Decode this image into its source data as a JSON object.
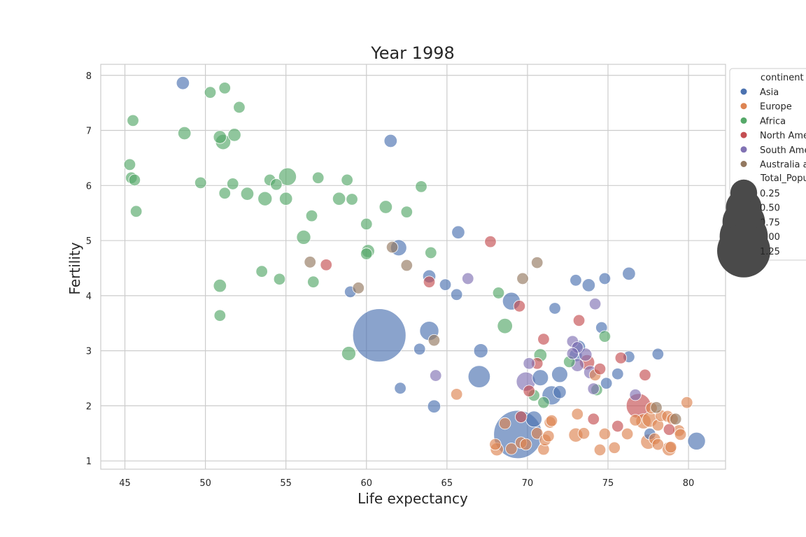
{
  "chart_data": {
    "type": "scatter",
    "title": "Year 1998",
    "xlabel": "Life expectancy",
    "ylabel": "Fertility",
    "xlim": [
      43.5,
      82.3
    ],
    "ylim": [
      0.85,
      8.2
    ],
    "xticks": [
      45,
      50,
      55,
      60,
      65,
      70,
      75,
      80
    ],
    "yticks": [
      1,
      2,
      3,
      4,
      5,
      6,
      7,
      8
    ],
    "grid": true,
    "legend_position": "right",
    "legend": {
      "hue_title": "continent",
      "hue_entries": [
        {
          "label": "Asia",
          "color": "#4c72b0"
        },
        {
          "label": "Europe",
          "color": "#dd8452"
        },
        {
          "label": "Africa",
          "color": "#55a868"
        },
        {
          "label": "North America",
          "color": "#c44e52"
        },
        {
          "label": "South America",
          "color": "#8172b3"
        },
        {
          "label": "Australia and Oceania",
          "color": "#937860"
        }
      ],
      "size_title": "Total_Population",
      "size_entries": [
        {
          "label": "0.25",
          "value": 0.25
        },
        {
          "label": "0.50",
          "value": 0.5
        },
        {
          "label": "0.75",
          "value": 0.75
        },
        {
          "label": "1.00",
          "value": 1.0
        },
        {
          "label": "1.25",
          "value": 1.25
        }
      ]
    },
    "series": [
      {
        "name": "Asia",
        "color": "#4c72b0",
        "points": [
          [
            48.6,
            7.86,
            0.03
          ],
          [
            61.5,
            6.81,
            0.03
          ],
          [
            62.0,
            4.87,
            0.06
          ],
          [
            65.7,
            5.15,
            0.03
          ],
          [
            63.9,
            4.35,
            0.03
          ],
          [
            59.0,
            4.07,
            0.02
          ],
          [
            64.9,
            4.2,
            0.02
          ],
          [
            65.6,
            4.02,
            0.02
          ],
          [
            69.0,
            3.9,
            0.08
          ],
          [
            71.7,
            3.77,
            0.02
          ],
          [
            74.8,
            4.31,
            0.02
          ],
          [
            73.0,
            4.28,
            0.02
          ],
          [
            73.8,
            4.19,
            0.03
          ],
          [
            76.3,
            4.4,
            0.03
          ],
          [
            60.8,
            3.28,
            1.25
          ],
          [
            63.9,
            3.36,
            0.1
          ],
          [
            63.3,
            3.03,
            0.02
          ],
          [
            67.1,
            3.0,
            0.04
          ],
          [
            67.0,
            2.53,
            0.15
          ],
          [
            70.8,
            2.51,
            0.06
          ],
          [
            72.0,
            2.57,
            0.06
          ],
          [
            73.0,
            2.92,
            0.03
          ],
          [
            73.2,
            3.07,
            0.03
          ],
          [
            74.6,
            3.42,
            0.02
          ],
          [
            74.9,
            2.41,
            0.02
          ],
          [
            75.6,
            2.58,
            0.02
          ],
          [
            76.3,
            2.89,
            0.02
          ],
          [
            78.1,
            2.94,
            0.02
          ],
          [
            62.1,
            2.32,
            0.02
          ],
          [
            64.2,
            1.99,
            0.03
          ],
          [
            71.5,
            2.19,
            0.1
          ],
          [
            72.0,
            2.25,
            0.03
          ],
          [
            69.4,
            1.48,
            1.0
          ],
          [
            70.4,
            1.76,
            0.06
          ],
          [
            77.6,
            1.49,
            0.02
          ],
          [
            80.5,
            1.36,
            0.08
          ]
        ]
      },
      {
        "name": "Europe",
        "color": "#dd8452",
        "points": [
          [
            65.6,
            2.21,
            0.02
          ],
          [
            68.0,
            1.3,
            0.02
          ],
          [
            68.1,
            1.21,
            0.03
          ],
          [
            68.6,
            1.68,
            0.02
          ],
          [
            69.0,
            1.22,
            0.02
          ],
          [
            69.6,
            1.33,
            0.02
          ],
          [
            69.9,
            1.3,
            0.02
          ],
          [
            70.6,
            1.5,
            0.02
          ],
          [
            71.0,
            1.21,
            0.02
          ],
          [
            71.1,
            1.38,
            0.02
          ],
          [
            71.3,
            1.45,
            0.02
          ],
          [
            71.4,
            1.7,
            0.02
          ],
          [
            71.5,
            1.73,
            0.02
          ],
          [
            73.0,
            1.47,
            0.04
          ],
          [
            73.5,
            1.5,
            0.02
          ],
          [
            73.1,
            1.85,
            0.02
          ],
          [
            74.2,
            2.56,
            0.02
          ],
          [
            74.5,
            1.2,
            0.02
          ],
          [
            74.8,
            1.49,
            0.02
          ],
          [
            75.4,
            1.24,
            0.02
          ],
          [
            76.2,
            1.49,
            0.02
          ],
          [
            76.7,
            1.74,
            0.02
          ],
          [
            77.2,
            1.72,
            0.05
          ],
          [
            77.5,
            1.35,
            0.05
          ],
          [
            77.6,
            1.75,
            0.05
          ],
          [
            77.7,
            1.96,
            0.02
          ],
          [
            77.9,
            1.4,
            0.02
          ],
          [
            78.1,
            1.65,
            0.02
          ],
          [
            78.1,
            1.3,
            0.02
          ],
          [
            78.3,
            1.82,
            0.02
          ],
          [
            78.7,
            1.81,
            0.02
          ],
          [
            78.8,
            1.22,
            0.04
          ],
          [
            78.9,
            1.25,
            0.02
          ],
          [
            79.0,
            1.76,
            0.02
          ],
          [
            79.4,
            1.55,
            0.02
          ],
          [
            79.5,
            1.48,
            0.02
          ],
          [
            79.9,
            2.06,
            0.02
          ]
        ]
      },
      {
        "name": "Africa",
        "color": "#55a868",
        "points": [
          [
            45.5,
            7.18,
            0.02
          ],
          [
            48.7,
            6.95,
            0.03
          ],
          [
            50.3,
            7.69,
            0.02
          ],
          [
            51.2,
            7.77,
            0.02
          ],
          [
            52.1,
            7.42,
            0.02
          ],
          [
            50.9,
            6.88,
            0.03
          ],
          [
            51.1,
            6.79,
            0.05
          ],
          [
            51.8,
            6.92,
            0.03
          ],
          [
            45.3,
            6.38,
            0.02
          ],
          [
            45.4,
            6.14,
            0.02
          ],
          [
            45.6,
            6.1,
            0.02
          ],
          [
            45.7,
            5.53,
            0.02
          ],
          [
            49.7,
            6.05,
            0.02
          ],
          [
            51.2,
            5.86,
            0.02
          ],
          [
            51.7,
            6.03,
            0.02
          ],
          [
            52.6,
            5.85,
            0.03
          ],
          [
            53.7,
            5.76,
            0.04
          ],
          [
            54.0,
            6.1,
            0.02
          ],
          [
            54.4,
            6.02,
            0.02
          ],
          [
            55.1,
            6.16,
            0.08
          ],
          [
            55.0,
            5.76,
            0.03
          ],
          [
            57.0,
            6.14,
            0.02
          ],
          [
            58.3,
            5.76,
            0.03
          ],
          [
            58.8,
            6.1,
            0.02
          ],
          [
            59.1,
            5.75,
            0.02
          ],
          [
            56.6,
            5.45,
            0.02
          ],
          [
            56.1,
            5.06,
            0.04
          ],
          [
            60.0,
            5.3,
            0.02
          ],
          [
            61.2,
            5.61,
            0.03
          ],
          [
            62.5,
            5.52,
            0.02
          ],
          [
            63.4,
            5.98,
            0.02
          ],
          [
            60.0,
            4.76,
            0.02
          ],
          [
            60.1,
            4.81,
            0.03
          ],
          [
            64.0,
            4.78,
            0.02
          ],
          [
            53.5,
            4.44,
            0.02
          ],
          [
            54.6,
            4.3,
            0.02
          ],
          [
            56.7,
            4.25,
            0.02
          ],
          [
            50.9,
            4.18,
            0.03
          ],
          [
            50.9,
            3.64,
            0.02
          ],
          [
            58.9,
            2.95,
            0.04
          ],
          [
            68.2,
            4.05,
            0.02
          ],
          [
            68.6,
            3.45,
            0.05
          ],
          [
            70.8,
            2.92,
            0.03
          ],
          [
            72.6,
            2.8,
            0.02
          ],
          [
            74.8,
            3.26,
            0.02
          ],
          [
            74.3,
            2.29,
            0.02
          ],
          [
            70.4,
            2.19,
            0.02
          ],
          [
            71.0,
            2.06,
            0.02
          ]
        ]
      },
      {
        "name": "North America",
        "color": "#c44e52",
        "points": [
          [
            57.5,
            4.56,
            0.02
          ],
          [
            63.9,
            4.25,
            0.02
          ],
          [
            67.7,
            4.98,
            0.02
          ],
          [
            69.5,
            3.81,
            0.02
          ],
          [
            71.0,
            3.21,
            0.02
          ],
          [
            73.2,
            3.55,
            0.02
          ],
          [
            70.6,
            2.77,
            0.02
          ],
          [
            73.7,
            2.79,
            0.05
          ],
          [
            74.5,
            2.67,
            0.02
          ],
          [
            75.8,
            2.87,
            0.02
          ],
          [
            77.3,
            2.56,
            0.02
          ],
          [
            70.1,
            2.27,
            0.02
          ],
          [
            69.6,
            1.8,
            0.02
          ],
          [
            76.9,
            2.0,
            0.2
          ],
          [
            74.1,
            1.76,
            0.02
          ],
          [
            75.6,
            1.63,
            0.02
          ],
          [
            78.8,
            1.57,
            0.02
          ]
        ]
      },
      {
        "name": "South America",
        "color": "#8172b3",
        "points": [
          [
            66.3,
            4.31,
            0.02
          ],
          [
            74.2,
            3.85,
            0.02
          ],
          [
            72.8,
            3.17,
            0.02
          ],
          [
            73.1,
            3.06,
            0.02
          ],
          [
            73.6,
            2.93,
            0.03
          ],
          [
            72.8,
            2.95,
            0.02
          ],
          [
            73.1,
            2.74,
            0.03
          ],
          [
            70.1,
            2.77,
            0.02
          ],
          [
            69.9,
            2.44,
            0.1
          ],
          [
            73.9,
            2.61,
            0.03
          ],
          [
            74.1,
            2.31,
            0.02
          ],
          [
            64.3,
            2.55,
            0.02
          ],
          [
            76.7,
            2.2,
            0.02
          ]
        ]
      },
      {
        "name": "Australia and Oceania",
        "color": "#937860",
        "points": [
          [
            56.5,
            4.61,
            0.02
          ],
          [
            59.5,
            4.14,
            0.02
          ],
          [
            61.6,
            4.88,
            0.02
          ],
          [
            62.5,
            4.55,
            0.02
          ],
          [
            64.2,
            3.19,
            0.02
          ],
          [
            69.7,
            4.31,
            0.02
          ],
          [
            70.6,
            4.6,
            0.02
          ],
          [
            78.0,
            1.97,
            0.02
          ],
          [
            79.2,
            1.76,
            0.02
          ]
        ]
      }
    ]
  }
}
